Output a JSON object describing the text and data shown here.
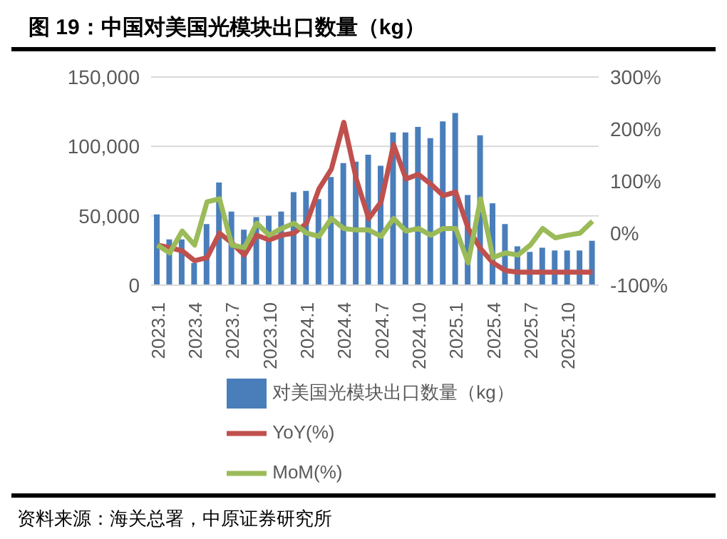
{
  "chart_data": {
    "type": "bar",
    "title": "图 19：中国对美国光模块出口数量（kg）",
    "categories": [
      "2023.1",
      null,
      null,
      "2023.4",
      null,
      null,
      "2023.7",
      null,
      null,
      "2023.10",
      null,
      null,
      "2024.1",
      null,
      null,
      "2024.4",
      null,
      null,
      "2024.7",
      null,
      null,
      "2024.10",
      null,
      null,
      "2025.1",
      null,
      null,
      "2025.4",
      null,
      null,
      "2025.7",
      null,
      null,
      "2025.10",
      null,
      null
    ],
    "series": [
      {
        "name": "对美国光模块出口数量（kg）",
        "color": "#4a7ebb",
        "values": [
          51000,
          33000,
          33000,
          16000,
          44000,
          74000,
          53000,
          40000,
          49000,
          50000,
          53000,
          67000,
          68000,
          62000,
          78000,
          88000,
          89000,
          94000,
          86000,
          110000,
          110000,
          114000,
          106000,
          118000,
          124000,
          65000,
          108000,
          59000,
          44000,
          28000,
          24000,
          27000,
          25000,
          25000,
          25000,
          32000
        ]
      },
      {
        "name": "YoY(%)",
        "type": "line",
        "axis": "y2",
        "color": "#c0504d",
        "values": [
          -23,
          -28,
          -34,
          -53,
          -47,
          0,
          -19,
          -42,
          -4,
          -13,
          -4,
          0,
          19,
          85,
          123,
          213,
          104,
          28,
          60,
          170,
          104,
          113,
          94,
          72,
          79,
          9,
          -30,
          -57,
          -72,
          -75,
          -75,
          -75,
          -75,
          -75,
          -75,
          -75
        ]
      },
      {
        "name": "MoM(%)",
        "type": "line",
        "axis": "y2",
        "color": "#9bbb59",
        "values": [
          -23,
          -38,
          4,
          -23,
          60,
          66,
          -23,
          -28,
          19,
          -4,
          9,
          19,
          0,
          -6,
          28,
          9,
          6,
          6,
          -6,
          28,
          4,
          9,
          -4,
          9,
          9,
          -57,
          66,
          -47,
          -38,
          -42,
          -23,
          9,
          -9,
          -4,
          0,
          23
        ]
      }
    ],
    "ylim": [
      0,
      150000
    ],
    "yticks": [
      {
        "value": 0,
        "label": "0"
      },
      {
        "value": 50000,
        "label": "50,000"
      },
      {
        "value": 100000,
        "label": "100,000"
      },
      {
        "value": 150000,
        "label": "150,000"
      }
    ],
    "y2lim": [
      -100,
      300
    ],
    "y2ticks": [
      {
        "value": -100,
        "label": "-100%"
      },
      {
        "value": 0,
        "label": "0%"
      },
      {
        "value": 100,
        "label": "100%"
      },
      {
        "value": 200,
        "label": "200%"
      },
      {
        "value": 300,
        "label": "300%"
      }
    ],
    "grid": "y",
    "legend": "bottom",
    "marker": "none",
    "line_style": "solid",
    "annotations": [
      "资料来源：海关总署，中原证券研究所"
    ]
  }
}
